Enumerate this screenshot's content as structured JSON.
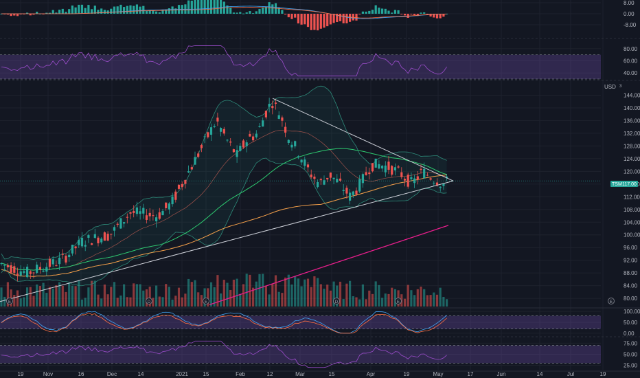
{
  "header": {
    "currency": "USD"
  },
  "price_tag": {
    "symbol": "TSM",
    "value": "117.00"
  },
  "colors": {
    "background": "#131722",
    "grid": "#1e222d",
    "up": "#26a69a",
    "down": "#ef5350",
    "ma_green": "#2ecc71",
    "ma_orange": "#f5a04a",
    "ma_magenta": "#e91e8c",
    "trendline": "#d1d4dc",
    "band_fill": "#26a69a",
    "band_line": "#2e8b7a",
    "rsi_band": "#7e57c2",
    "rsi_line": "#9c4dcc",
    "macd_line": "#42a5f5",
    "signal_line": "#ff7043",
    "stoch_k": "#42a5f5",
    "stoch_d": "#ff7043"
  },
  "x_axis": {
    "labels": [
      "19",
      "Nov",
      "16",
      "Dec",
      "14",
      "2021",
      "15",
      "Feb",
      "12",
      "Mar",
      "15",
      "Apr",
      "19",
      "May",
      "17",
      "Jun",
      "14",
      "Jul",
      "19"
    ]
  },
  "event_markers": [
    {
      "x_label": "E",
      "kind": "earnings"
    },
    {
      "x_label": "D",
      "kind": "dividend"
    },
    {
      "x_label": "E",
      "kind": "earnings"
    },
    {
      "x_label": "D",
      "kind": "dividend"
    },
    {
      "x_label": "E",
      "kind": "earnings"
    },
    {
      "x_label": "E",
      "kind": "earnings"
    }
  ],
  "chart_data": [
    {
      "panel": "macd",
      "type": "bar",
      "y_ticks": [
        "8.00",
        "0.00",
        "-8.00"
      ],
      "ylim": [
        -10,
        10
      ]
    },
    {
      "panel": "rsi",
      "type": "line",
      "y_ticks": [
        "80.00",
        "60.00",
        "40.00"
      ],
      "ylim": [
        30,
        90
      ],
      "band": [
        30,
        70
      ]
    },
    {
      "panel": "price",
      "type": "candlestick",
      "y_ticks": [
        "144.00",
        "140.00",
        "136.00",
        "132.00",
        "128.00",
        "124.00",
        "120.00",
        "116.00",
        "112.00",
        "108.00",
        "104.00",
        "100.00",
        "96.00",
        "92.00",
        "88.00",
        "84.00",
        "80.00"
      ],
      "ylim": [
        77,
        148
      ],
      "last_price": 117,
      "trendline_upper": {
        "from": {
          "x": 397,
          "y": 143
        },
        "to": {
          "x": 660,
          "y": 117
        }
      },
      "trendline_lower": {
        "from": {
          "x": 0,
          "y": 79
        },
        "to": {
          "x": 660,
          "y": 117
        }
      },
      "key_prices": [
        {
          "x": 0,
          "y": 91
        },
        {
          "x": 40,
          "y": 88
        },
        {
          "x": 90,
          "y": 92
        },
        {
          "x": 120,
          "y": 98
        },
        {
          "x": 160,
          "y": 100
        },
        {
          "x": 190,
          "y": 107
        },
        {
          "x": 230,
          "y": 106
        },
        {
          "x": 250,
          "y": 110
        },
        {
          "x": 275,
          "y": 120
        },
        {
          "x": 300,
          "y": 130
        },
        {
          "x": 315,
          "y": 136
        },
        {
          "x": 330,
          "y": 130
        },
        {
          "x": 345,
          "y": 125
        },
        {
          "x": 360,
          "y": 130
        },
        {
          "x": 375,
          "y": 132
        },
        {
          "x": 390,
          "y": 140
        },
        {
          "x": 397,
          "y": 142
        },
        {
          "x": 410,
          "y": 137
        },
        {
          "x": 420,
          "y": 131
        },
        {
          "x": 435,
          "y": 126
        },
        {
          "x": 450,
          "y": 120
        },
        {
          "x": 465,
          "y": 116
        },
        {
          "x": 480,
          "y": 119
        },
        {
          "x": 495,
          "y": 116
        },
        {
          "x": 510,
          "y": 112
        },
        {
          "x": 525,
          "y": 116
        },
        {
          "x": 540,
          "y": 122
        },
        {
          "x": 555,
          "y": 122
        },
        {
          "x": 570,
          "y": 121
        },
        {
          "x": 585,
          "y": 119
        },
        {
          "x": 600,
          "y": 116
        },
        {
          "x": 615,
          "y": 120
        },
        {
          "x": 630,
          "y": 118
        },
        {
          "x": 645,
          "y": 116
        },
        {
          "x": 655,
          "y": 117
        }
      ]
    },
    {
      "panel": "stoch",
      "type": "line",
      "y_ticks": [
        "100.00",
        "50.00",
        "0.00"
      ],
      "ylim": [
        -10,
        110
      ],
      "band": [
        20,
        80
      ]
    },
    {
      "panel": "rsi2",
      "type": "line",
      "y_ticks": [
        "75.00",
        "50.00",
        "25.00"
      ],
      "ylim": [
        15,
        85
      ],
      "band": [
        30,
        70
      ]
    }
  ]
}
